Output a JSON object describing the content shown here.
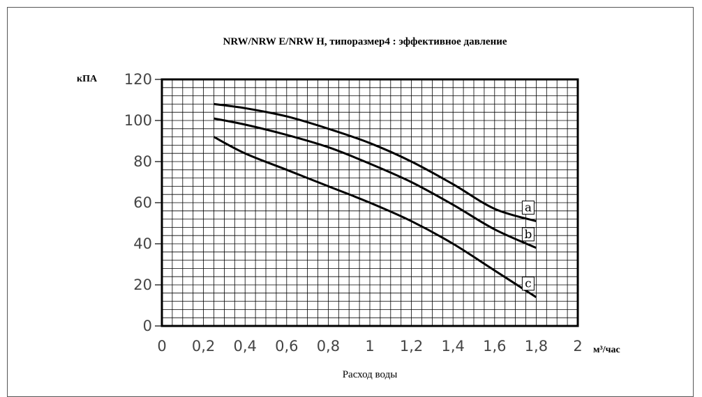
{
  "chart_data": {
    "type": "line",
    "title": "NRW/NRW E/NRW H, типоразмер4 : эффективное давление",
    "ylabel": "кПА",
    "xunit": "м³/час",
    "xlabel": "Расход воды",
    "xlim": [
      0,
      2
    ],
    "ylim": [
      0,
      120
    ],
    "xticks": [
      "0",
      "0,2",
      "0,4",
      "0,6",
      "0,8",
      "1",
      "1,2",
      "1,4",
      "1,6",
      "1,8",
      "2"
    ],
    "yticks": [
      "0",
      "20",
      "40",
      "60",
      "80",
      "100",
      "120"
    ],
    "grid": true,
    "series": [
      {
        "name": "a",
        "x": [
          0.25,
          0.4,
          0.6,
          0.8,
          1.0,
          1.2,
          1.4,
          1.6,
          1.8
        ],
        "y": [
          108,
          106,
          102,
          96,
          89,
          80,
          69,
          57,
          51
        ]
      },
      {
        "name": "b",
        "x": [
          0.25,
          0.4,
          0.6,
          0.8,
          1.0,
          1.2,
          1.4,
          1.6,
          1.8
        ],
        "y": [
          101,
          98,
          93,
          87,
          79,
          70,
          59,
          47,
          38
        ]
      },
      {
        "name": "c",
        "x": [
          0.25,
          0.4,
          0.6,
          0.8,
          1.0,
          1.2,
          1.4,
          1.6,
          1.8
        ],
        "y": [
          92,
          84,
          76,
          68,
          60,
          51,
          40,
          27,
          14
        ]
      }
    ]
  }
}
